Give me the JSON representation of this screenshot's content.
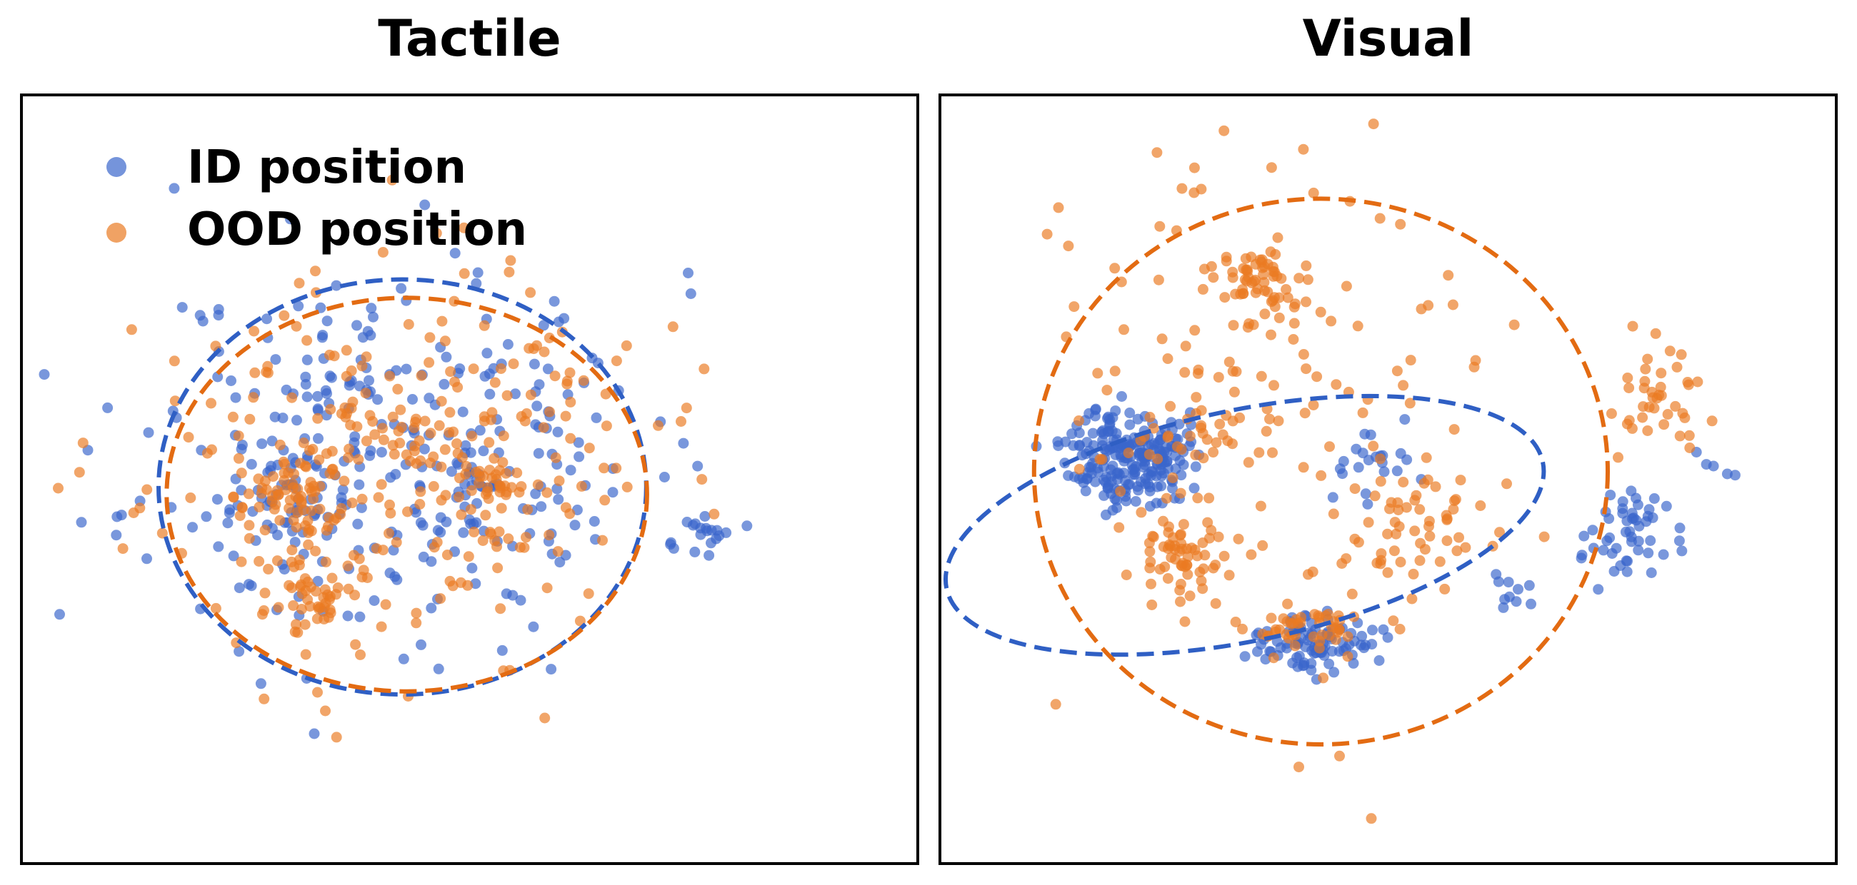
{
  "colors": {
    "id": "#3a66cc",
    "ood": "#ea7a22",
    "id_ellipse": "#2f5fc4",
    "ood_ellipse": "#e36b12"
  },
  "legend": {
    "id_label": "ID position",
    "ood_label": "OOD position"
  },
  "chart_data": [
    {
      "type": "scatter",
      "title": "Tactile",
      "xlabel": "",
      "ylabel": "",
      "xlim": [
        0,
        100
      ],
      "ylim": [
        0,
        100
      ],
      "grid": false,
      "legend_position": "top-left",
      "axes_ticks": "none",
      "series": [
        {
          "name": "ID position",
          "color": "#3a66cc",
          "generator": {
            "seed": 11,
            "clusters": [
              {
                "cx": 42,
                "cy": 53,
                "sx": 14,
                "sy": 12,
                "n": 330
              },
              {
                "cx": 30,
                "cy": 48,
                "sx": 3,
                "sy": 3,
                "n": 25
              },
              {
                "cx": 76,
                "cy": 43,
                "sx": 1.5,
                "sy": 1.2,
                "n": 15
              }
            ]
          }
        },
        {
          "name": "OOD position",
          "color": "#ea7a22",
          "generator": {
            "seed": 23,
            "clusters": [
              {
                "cx": 42,
                "cy": 52,
                "sx": 14,
                "sy": 12,
                "n": 280
              },
              {
                "cx": 31,
                "cy": 48,
                "sx": 2.5,
                "sy": 3,
                "n": 60
              },
              {
                "cx": 32,
                "cy": 34,
                "sx": 2.5,
                "sy": 2,
                "n": 45
              },
              {
                "cx": 53,
                "cy": 50,
                "sx": 2,
                "sy": 2,
                "n": 25
              }
            ]
          }
        }
      ],
      "ellipses": [
        {
          "series": "ID position",
          "cx": 42.5,
          "cy": 49,
          "rx": 27.2,
          "ry": 27,
          "angle": 0
        },
        {
          "series": "OOD position",
          "cx": 43,
          "cy": 48,
          "rx": 26.8,
          "ry": 25.6,
          "angle": 0
        }
      ]
    },
    {
      "type": "scatter",
      "title": "Visual",
      "xlabel": "",
      "ylabel": "",
      "xlim": [
        0,
        100
      ],
      "ylim": [
        0,
        100
      ],
      "grid": false,
      "axes_ticks": "none",
      "series": [
        {
          "name": "ID position",
          "color": "#3a66cc",
          "generator": {
            "seed": 37,
            "clusters": [
              {
                "cx": 21,
                "cy": 53,
                "sx": 3.3,
                "sy": 3.2,
                "n": 230
              },
              {
                "cx": 42,
                "cy": 29,
                "sx": 3.5,
                "sy": 1.8,
                "n": 90
              },
              {
                "cx": 77,
                "cy": 43,
                "sx": 2.5,
                "sy": 2.5,
                "n": 50
              },
              {
                "cx": 49,
                "cy": 52,
                "sx": 2.5,
                "sy": 2.5,
                "n": 22
              },
              {
                "cx": 64,
                "cy": 36,
                "sx": 1.5,
                "sy": 2,
                "n": 10
              },
              {
                "cx": 86,
                "cy": 52,
                "sx": 2.5,
                "sy": 1.5,
                "n": 5
              }
            ]
          }
        },
        {
          "name": "OOD position",
          "color": "#ea7a22",
          "generator": {
            "seed": 53,
            "clusters": [
              {
                "cx": 36,
                "cy": 76,
                "sx": 2.5,
                "sy": 2.5,
                "n": 55
              },
              {
                "cx": 27,
                "cy": 40,
                "sx": 2.8,
                "sy": 3,
                "n": 60
              },
              {
                "cx": 41,
                "cy": 30,
                "sx": 3.5,
                "sy": 1.8,
                "n": 45
              },
              {
                "cx": 80,
                "cy": 60,
                "sx": 3,
                "sy": 4,
                "n": 40
              },
              {
                "cx": 54,
                "cy": 43,
                "sx": 4,
                "sy": 4,
                "n": 45
              },
              {
                "cx": 40,
                "cy": 60,
                "sx": 14,
                "sy": 18,
                "n": 150
              },
              {
                "cx": 27,
                "cy": 56,
                "sx": 3,
                "sy": 3,
                "n": 25
              }
            ]
          }
        }
      ],
      "ellipses": [
        {
          "series": "ID position",
          "cx": 34,
          "cy": 44,
          "rx": 34,
          "ry": 15,
          "angle": -12
        },
        {
          "series": "OOD position",
          "cx": 42.5,
          "cy": 51,
          "rx": 32,
          "ry": 35.5,
          "angle": 0
        }
      ]
    }
  ]
}
